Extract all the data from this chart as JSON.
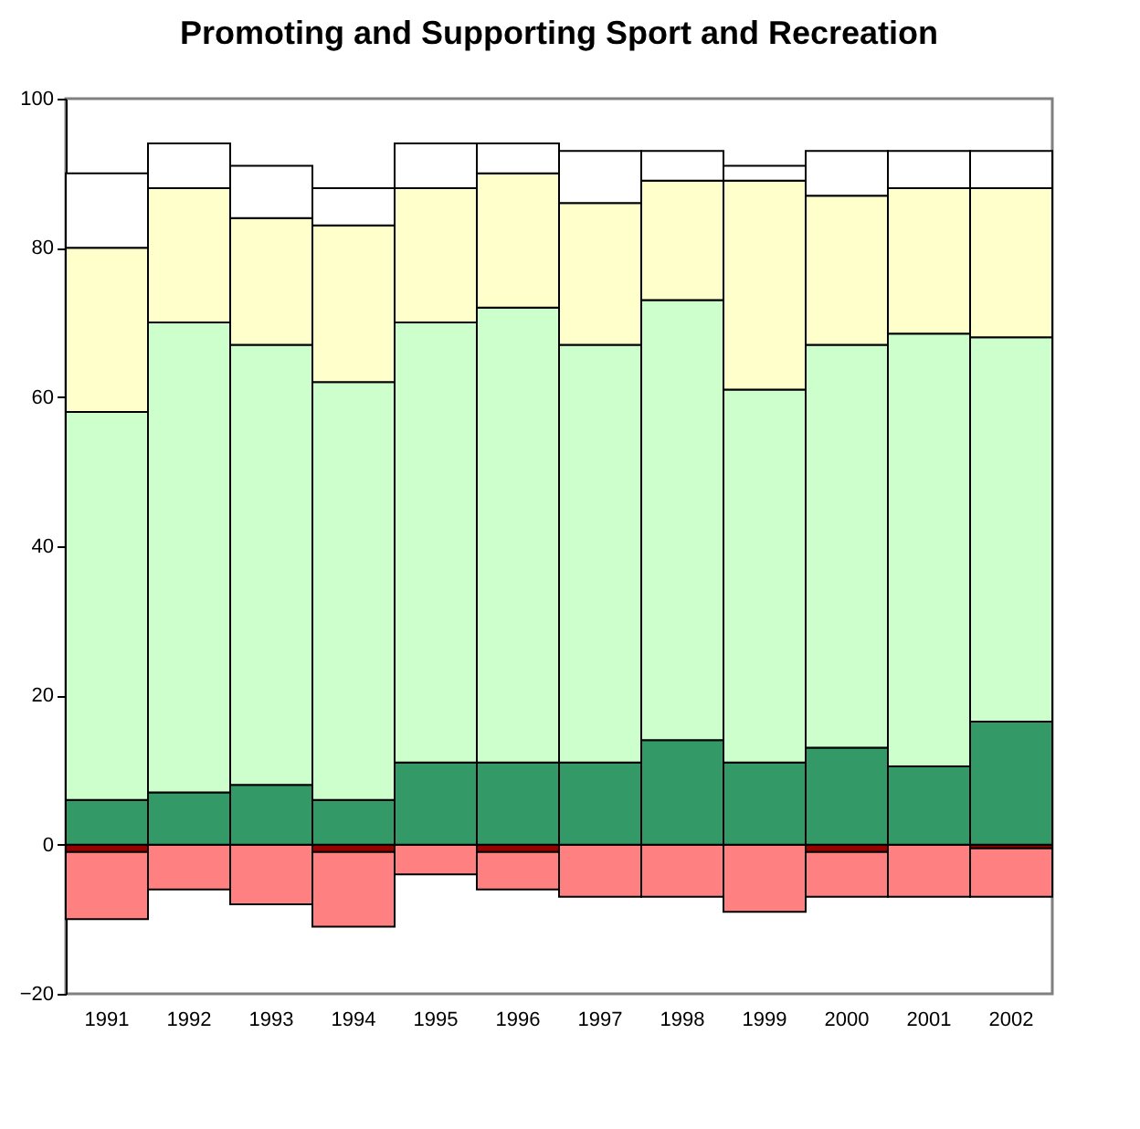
{
  "chart_data": {
    "type": "bar",
    "title": "Promoting and Supporting Sport and Recreation",
    "stacked": true,
    "categories": [
      "1991",
      "1992",
      "1993",
      "1994",
      "1995",
      "1996",
      "1997",
      "1998",
      "1999",
      "2000",
      "2001",
      "2002"
    ],
    "series": [
      {
        "color": "#990000",
        "values": [
          -1,
          0,
          0,
          -1,
          0,
          -1,
          0,
          0,
          0,
          -1,
          0,
          -0.5
        ]
      },
      {
        "color": "#ff8080",
        "values": [
          -9,
          -6,
          -8,
          -10,
          -4,
          -5,
          -7,
          -7,
          -9,
          -6,
          -7,
          -6.5
        ]
      },
      {
        "color": "#339966",
        "values": [
          6,
          7,
          8,
          6,
          11,
          11,
          11,
          14,
          11,
          13,
          10.5,
          16.5
        ]
      },
      {
        "color": "#ccffcc",
        "values": [
          52,
          63,
          59,
          56,
          59,
          61,
          56,
          59,
          50,
          54,
          58,
          51.5
        ]
      },
      {
        "color": "#ffffcc",
        "values": [
          22,
          18,
          17,
          21,
          18,
          18,
          19,
          16,
          28,
          20,
          19.5,
          20
        ]
      },
      {
        "color": "#ffffff",
        "values": [
          10,
          6,
          7,
          5,
          6,
          4,
          7,
          4,
          2,
          6,
          5,
          5
        ]
      }
    ],
    "ylim": [
      -20,
      100
    ],
    "yticks": [
      -20,
      0,
      20,
      40,
      60,
      80,
      100
    ],
    "grid": false,
    "legend": false
  }
}
